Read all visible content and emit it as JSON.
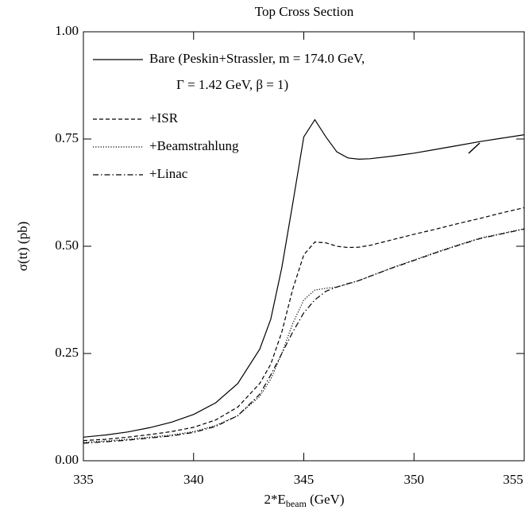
{
  "chart_data": {
    "type": "line",
    "title": "Top Cross Section",
    "xlabel": [
      "2*E",
      "beam",
      " (GeV)"
    ],
    "ylabel": "σ(tt) (pb)",
    "x": [
      335,
      336,
      337,
      338,
      339,
      340,
      341,
      342,
      343,
      343.5,
      344,
      344.5,
      345,
      345.5,
      346,
      346.5,
      347,
      347.5,
      348,
      349,
      350,
      351,
      352,
      353,
      354,
      355
    ],
    "series": [
      {
        "name": "Bare (Peskin+Strassler, m = 174.0 GeV,",
        "name_line2": "Γ = 1.42 GeV, β = 1)",
        "color": "#000000",
        "dash": "solid",
        "values": [
          0.055,
          0.06,
          0.067,
          0.077,
          0.09,
          0.108,
          0.135,
          0.18,
          0.26,
          0.33,
          0.45,
          0.6,
          0.755,
          0.795,
          0.755,
          0.72,
          0.706,
          0.703,
          0.704,
          0.71,
          0.717,
          0.726,
          0.735,
          0.744,
          0.752,
          0.76
        ]
      },
      {
        "name": "+ISR",
        "color": "#000000",
        "dash": "dashed",
        "values": [
          0.047,
          0.05,
          0.055,
          0.061,
          0.068,
          0.078,
          0.095,
          0.125,
          0.18,
          0.225,
          0.3,
          0.4,
          0.48,
          0.51,
          0.508,
          0.5,
          0.497,
          0.498,
          0.502,
          0.515,
          0.528,
          0.54,
          0.553,
          0.565,
          0.578,
          0.59
        ]
      },
      {
        "name": "+Beamstrahlung",
        "color": "#000000",
        "dash": "dotted",
        "values": [
          0.043,
          0.046,
          0.05,
          0.055,
          0.06,
          0.068,
          0.082,
          0.105,
          0.15,
          0.19,
          0.25,
          0.32,
          0.375,
          0.398,
          0.402,
          0.405,
          0.412,
          0.42,
          0.43,
          0.45,
          0.468,
          0.486,
          0.503,
          0.519,
          0.53,
          0.541
        ]
      },
      {
        "name": "+Linac",
        "color": "#000000",
        "dash": "dashdot",
        "values": [
          0.041,
          0.044,
          0.048,
          0.053,
          0.058,
          0.066,
          0.08,
          0.105,
          0.155,
          0.2,
          0.25,
          0.3,
          0.345,
          0.375,
          0.395,
          0.405,
          0.413,
          0.42,
          0.43,
          0.449,
          0.467,
          0.485,
          0.502,
          0.518,
          0.529,
          0.54
        ]
      }
    ],
    "xlim": [
      335,
      355
    ],
    "xticks": [
      335,
      340,
      345,
      350,
      355
    ],
    "ylim": [
      0,
      1
    ],
    "yticks": [
      {
        "value": 0,
        "label": "0.00"
      },
      {
        "value": 0.25,
        "label": "0.25"
      },
      {
        "value": 0.5,
        "label": "0.50"
      },
      {
        "value": 0.75,
        "label": "0.75"
      },
      {
        "value": 1,
        "label": "1.00"
      }
    ],
    "legend": "upper left"
  }
}
